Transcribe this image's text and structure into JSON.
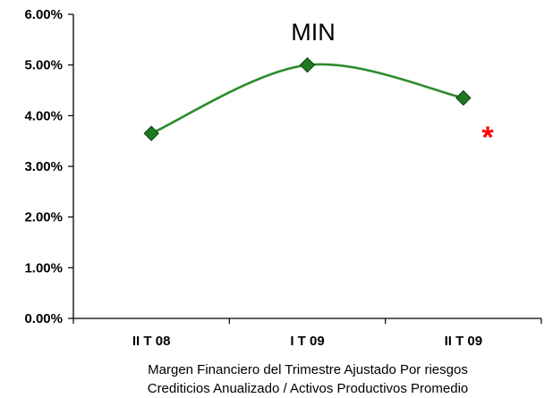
{
  "chart_data": {
    "type": "line",
    "title": "MIN",
    "categories": [
      "II T 08",
      "I T 09",
      "II T 09"
    ],
    "series": [
      {
        "values": [
          0.0365,
          0.05,
          0.0435
        ]
      }
    ],
    "y_ticks": [
      "0.00%",
      "1.00%",
      "2.00%",
      "3.00%",
      "4.00%",
      "5.00%",
      "6.00%"
    ],
    "ylim": [
      0,
      0.06
    ],
    "grid": false,
    "xlabel": "Margen Financiero del Trimestre Ajustado Por riesgos Crediticios Anualizado / Activos Productivos Promedio",
    "xlabel_lines": [
      "Margen Financiero del Trimestre Ajustado Por riesgos",
      "Crediticios Anualizado / Activos Productivos Promedio"
    ],
    "annotation": "*",
    "colors": {
      "line": "#2e8b2e",
      "marker_fill": "#1f7a1f",
      "marker_stroke": "#0b3d0b",
      "annotation": "#ff0000",
      "axis": "#000000"
    }
  }
}
